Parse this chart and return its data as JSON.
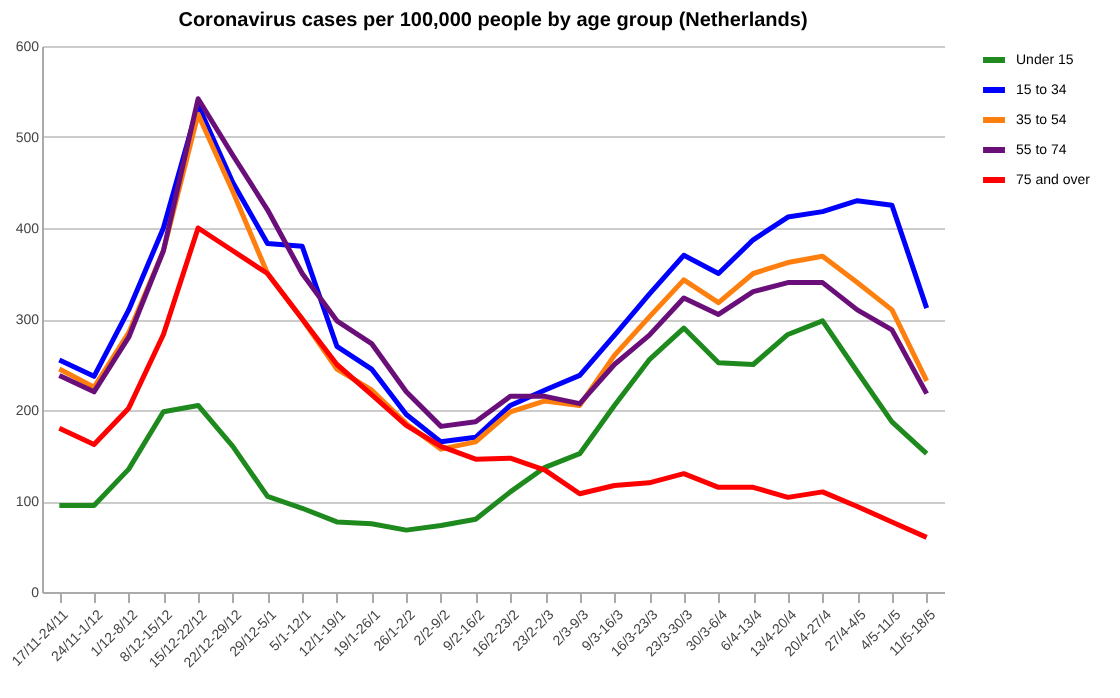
{
  "chart_data": {
    "type": "line",
    "title": "Coronavirus cases per 100,000 people by age group (Netherlands)",
    "categories": [
      "17/11-24/11",
      "24/11-1/12",
      "1/12-8/12",
      "8/12-15/12",
      "15/12-22/12",
      "22/12-29/12",
      "29/12-5/1",
      "5/1-12/1",
      "12/1-19/1",
      "19/1-26/1",
      "26/1-2/2",
      "2/2-9/2",
      "9/2-16/2",
      "16/2-23/2",
      "23/2-2/3",
      "2/3-9/3",
      "9/3-16/3",
      "16/3-23/3",
      "23/3-30/3",
      "30/3-6/4",
      "6/4-13/4",
      "13/4-20/4",
      "20/4-27/4",
      "27/4-4/5",
      "4/5-11/5",
      "11/5-18/5"
    ],
    "series": [
      {
        "name": "Under 15",
        "color": "#1e8a1e",
        "values": [
          95,
          95,
          135,
          198,
          205,
          160,
          105,
          92,
          77,
          75,
          68,
          73,
          80,
          110,
          137,
          152,
          205,
          255,
          290,
          252,
          250,
          283,
          298,
          242,
          187,
          152
        ]
      },
      {
        "name": "15 to 34",
        "color": "#0000ff",
        "values": [
          255,
          237,
          310,
          400,
          535,
          450,
          383,
          380,
          270,
          245,
          195,
          165,
          170,
          205,
          222,
          238,
          282,
          327,
          370,
          350,
          387,
          412,
          418,
          430,
          425,
          312
        ]
      },
      {
        "name": "35 to 54",
        "color": "#ff7f0e",
        "values": [
          245,
          225,
          285,
          375,
          525,
          440,
          350,
          300,
          245,
          222,
          185,
          157,
          165,
          198,
          210,
          205,
          260,
          302,
          343,
          318,
          350,
          362,
          369,
          340,
          310,
          232
        ]
      },
      {
        "name": "55 to 74",
        "color": "#6a0f7a",
        "values": [
          238,
          220,
          280,
          375,
          542,
          480,
          420,
          350,
          298,
          273,
          220,
          182,
          187,
          215,
          215,
          207,
          250,
          282,
          323,
          305,
          330,
          340,
          340,
          310,
          288,
          218
        ]
      },
      {
        "name": "75 and over",
        "color": "#ff0000",
        "values": [
          180,
          162,
          202,
          283,
          400,
          375,
          350,
          300,
          250,
          217,
          183,
          160,
          146,
          147,
          134,
          108,
          117,
          120,
          130,
          115,
          115,
          104,
          110,
          94,
          77,
          60
        ]
      }
    ],
    "ylim": [
      0,
      600
    ],
    "yticks": [
      0,
      100,
      200,
      300,
      400,
      500,
      600
    ],
    "grid": "y",
    "legend": "right",
    "marker": "none",
    "line_style": "solid"
  }
}
